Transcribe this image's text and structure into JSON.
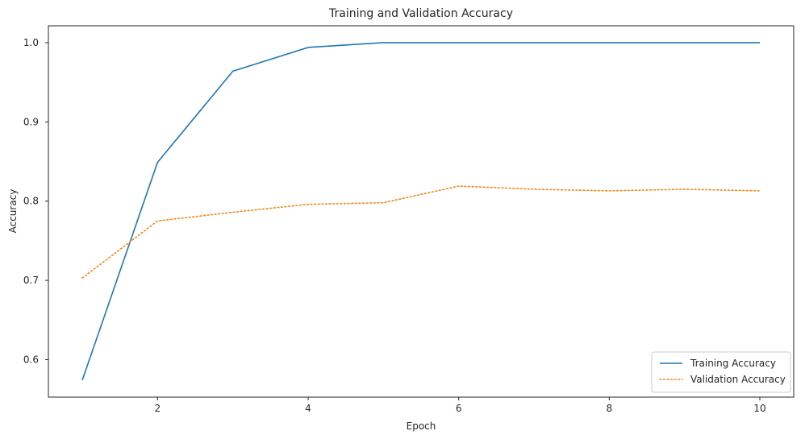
{
  "chart_data": {
    "type": "line",
    "title": "Training and Validation Accuracy",
    "xlabel": "Epoch",
    "ylabel": "Accuracy",
    "x": [
      1,
      2,
      3,
      4,
      5,
      6,
      7,
      8,
      9,
      10
    ],
    "series": [
      {
        "name": "Training Accuracy",
        "color": "#1f77b4",
        "linestyle": "solid",
        "values": [
          0.574,
          0.849,
          0.964,
          0.994,
          1.0,
          1.0,
          1.0,
          1.0,
          1.0,
          1.0
        ]
      },
      {
        "name": "Validation Accuracy",
        "color": "#ff7f0e",
        "linestyle": "dotted",
        "values": [
          0.703,
          0.775,
          0.786,
          0.796,
          0.798,
          0.819,
          0.815,
          0.813,
          0.815,
          0.813
        ]
      }
    ],
    "xlim": [
      0.55,
      10.45
    ],
    "ylim": [
      0.5527,
      1.0213
    ],
    "xticks": [
      2,
      4,
      6,
      8,
      10
    ],
    "yticks": [
      0.6,
      0.7,
      0.8,
      0.9,
      1.0
    ],
    "xtick_labels": [
      "2",
      "4",
      "6",
      "8",
      "10"
    ],
    "ytick_labels": [
      "0.6",
      "0.7",
      "0.8",
      "0.9",
      "1.0"
    ],
    "grid": false,
    "legend_position": "lower-right"
  }
}
